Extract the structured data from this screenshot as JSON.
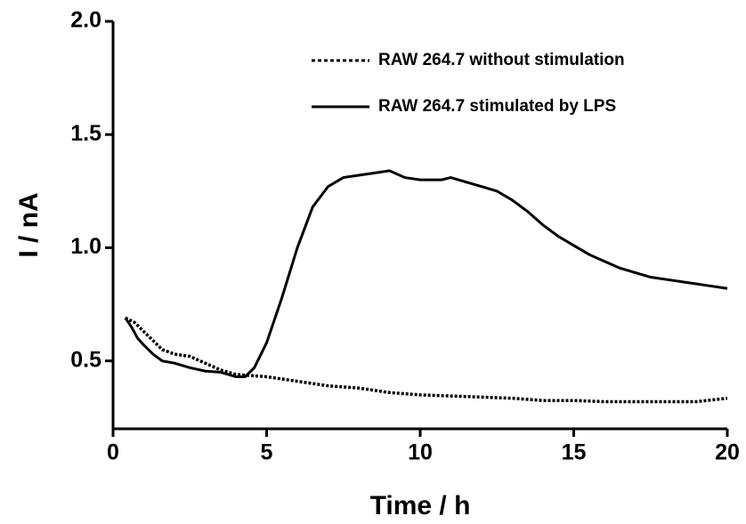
{
  "chart_data": {
    "type": "line",
    "xlabel": "Time / h",
    "ylabel": "I / nA",
    "xlim": [
      0,
      20
    ],
    "xticks": [
      0,
      5,
      10,
      15,
      20
    ],
    "ylim": [
      0.2,
      2.0
    ],
    "yticks": [
      0.5,
      {
        "value": 1.0,
        "label": "1.0"
      },
      1.5,
      {
        "value": 2.0,
        "label": "2.0"
      }
    ],
    "legend": "upper right",
    "series": [
      {
        "name": "RAW 264.7 without stimulation",
        "color": "#000000",
        "dashed": true,
        "x": [
          0.4,
          0.7,
          1,
          1.3,
          1.6,
          2,
          2.5,
          3,
          3.5,
          4,
          5,
          6,
          7,
          8,
          9,
          10,
          11,
          12,
          13,
          14,
          15,
          16,
          17,
          18,
          19,
          20
        ],
        "values": [
          0.69,
          0.67,
          0.63,
          0.59,
          0.55,
          0.53,
          0.52,
          0.49,
          0.46,
          0.44,
          0.43,
          0.41,
          0.39,
          0.38,
          0.36,
          0.35,
          0.345,
          0.34,
          0.335,
          0.325,
          0.325,
          0.32,
          0.32,
          0.32,
          0.32,
          0.335
        ]
      },
      {
        "name": "RAW 264.7 stimulated by LPS",
        "color": "#000000",
        "dashed": false,
        "x": [
          0.4,
          0.6,
          0.8,
          1,
          1.3,
          1.6,
          2,
          2.5,
          3,
          3.5,
          4,
          4.3,
          4.6,
          5,
          5.5,
          6,
          6.5,
          7,
          7.5,
          8,
          8.5,
          9,
          9.5,
          10,
          10.7,
          11,
          11.5,
          12,
          12.5,
          13,
          13.5,
          14,
          14.5,
          15,
          15.5,
          16,
          16.5,
          17,
          17.5,
          18,
          18.5,
          19,
          19.5,
          20
        ],
        "values": [
          0.69,
          0.65,
          0.6,
          0.57,
          0.53,
          0.5,
          0.49,
          0.47,
          0.455,
          0.45,
          0.43,
          0.43,
          0.47,
          0.58,
          0.78,
          1.0,
          1.18,
          1.27,
          1.31,
          1.32,
          1.33,
          1.34,
          1.31,
          1.3,
          1.3,
          1.31,
          1.29,
          1.27,
          1.25,
          1.21,
          1.16,
          1.1,
          1.05,
          1.01,
          0.97,
          0.94,
          0.91,
          0.89,
          0.87,
          0.86,
          0.85,
          0.84,
          0.83,
          0.82
        ]
      }
    ]
  }
}
